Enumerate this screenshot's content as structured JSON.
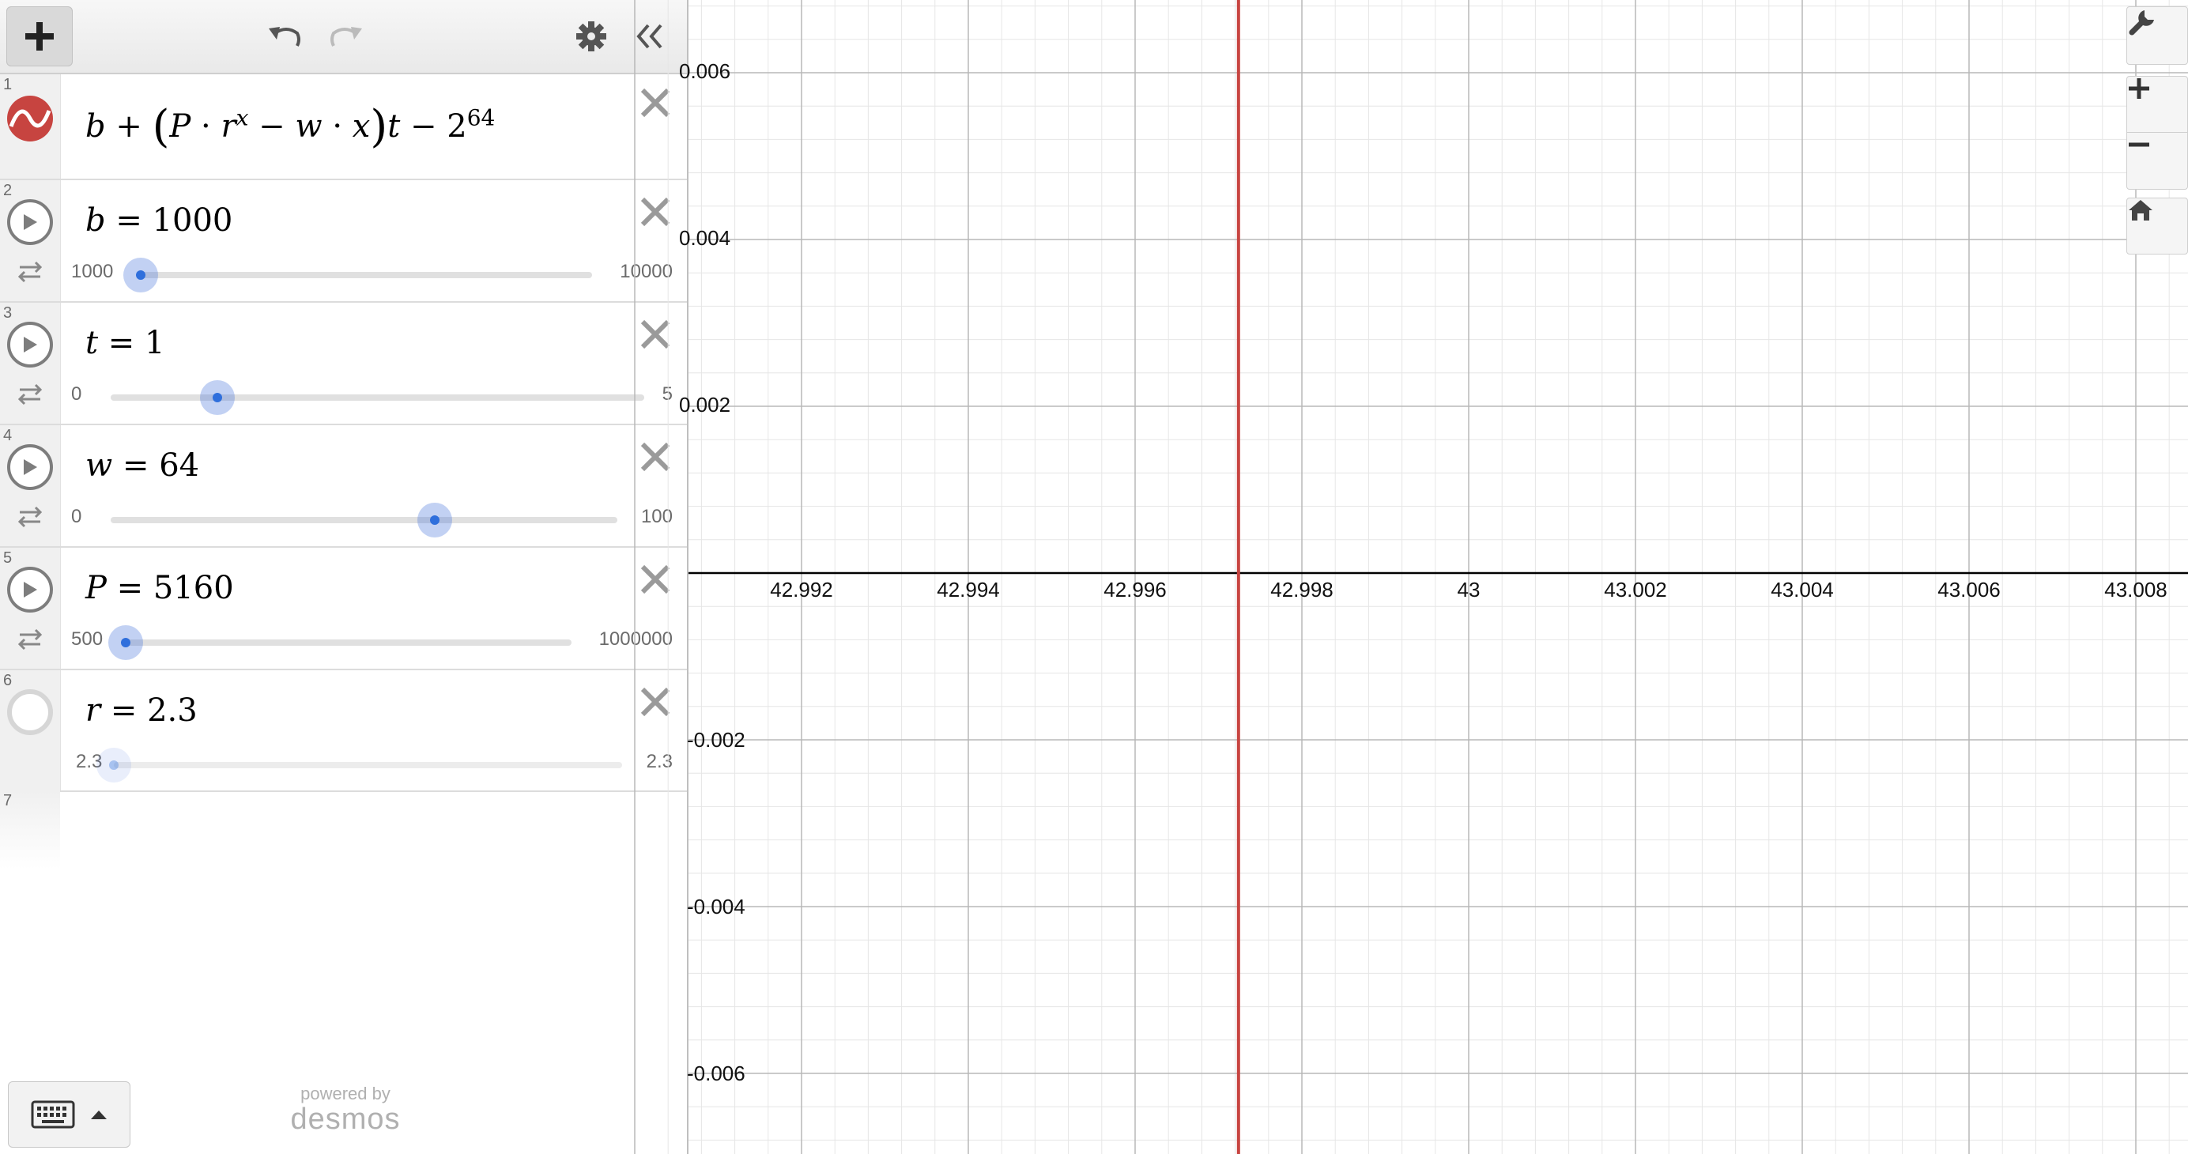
{
  "toolbar": {
    "add_icon": "plus-icon",
    "undo_icon": "undo-icon",
    "redo_icon": "redo-icon",
    "settings_icon": "gear-icon",
    "collapse_icon": "double-chevron-left-icon"
  },
  "expressions": [
    {
      "index": "1",
      "type": "function",
      "color": "#c74440",
      "latex_text": "b + (P · r^x − w · x)t − 2^64"
    },
    {
      "index": "2",
      "type": "slider",
      "variable": "b",
      "value": "1000",
      "min": "1000",
      "max": "10000",
      "position": 0.0
    },
    {
      "index": "3",
      "type": "slider",
      "variable": "t",
      "value": "1",
      "min": "0",
      "max": "5",
      "position": 0.2
    },
    {
      "index": "4",
      "type": "slider",
      "variable": "w",
      "value": "64",
      "min": "0",
      "max": "100",
      "position": 0.64
    },
    {
      "index": "5",
      "type": "slider",
      "variable": "P",
      "value": "5160",
      "min": "500",
      "max": "1000000",
      "position": 0.005
    },
    {
      "index": "6",
      "type": "slider",
      "variable": "r",
      "value": "2.3",
      "min": "2.3",
      "max": "2.3",
      "position": 0.0
    },
    {
      "index": "7",
      "type": "empty"
    }
  ],
  "footer": {
    "powered_by": "powered by",
    "brand": "desmos",
    "keyboard_icon": "keyboard-icon"
  },
  "graph": {
    "x_ticks": [
      "42.992",
      "42.994",
      "42.996",
      "42.998",
      "43",
      "43.002",
      "43.004",
      "43.006",
      "43.008"
    ],
    "y_ticks_pos": [
      "0.006",
      "0.004",
      "0.002"
    ],
    "y_ticks_neg": [
      "-0.002",
      "-0.004",
      "-0.006"
    ],
    "curve_color": "#c74440",
    "curve_x": 42.99724,
    "controls": [
      "wrench-icon",
      "zoom-in-icon",
      "zoom-out-icon",
      "home-icon"
    ]
  }
}
